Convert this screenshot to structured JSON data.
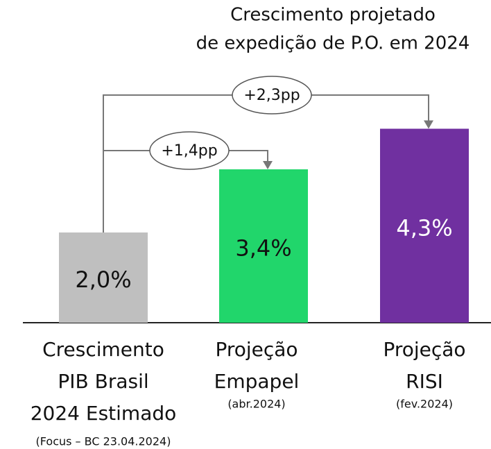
{
  "chart_data": {
    "type": "bar",
    "title": [
      "Crescimento projetado",
      "de expedição de P.O. em 2024"
    ],
    "categories": [
      [
        "Crescimento",
        "PIB Brasil",
        "2024 Estimado"
      ],
      [
        "Projeção",
        "Empapel"
      ],
      [
        "Projeção",
        "RISI"
      ]
    ],
    "category_notes": [
      "(Focus – BC 23.04.2024)",
      "(abr.2024)",
      "(fev.2024)"
    ],
    "values": [
      2.0,
      3.4,
      4.3
    ],
    "value_labels": [
      "2,0%",
      "3,4%",
      "4,3%"
    ],
    "colors": [
      "#bfbfbf",
      "#21d66b",
      "#7030a0"
    ],
    "ylim": [
      0,
      5
    ],
    "annotations": [
      {
        "text": "+2,3pp",
        "from": 0,
        "to": 2
      },
      {
        "text": "+1,4pp",
        "from": 0,
        "to": 1
      }
    ]
  }
}
